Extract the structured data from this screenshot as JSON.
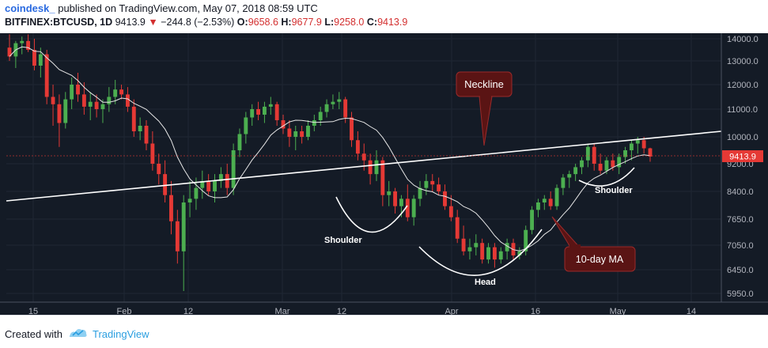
{
  "header": {
    "author": "coindesk_",
    "published_text": "published on TradingView.com, May 07, 2018 08:59 UTC",
    "symbol": "BITFINEX:BTCUSD, 1D",
    "last_price": "9413.9",
    "change_arrow": "▼",
    "change": "−244.8 (−2.53%)",
    "open_label": "O:",
    "open": "9658.6",
    "high_label": "H:",
    "high": "9677.9",
    "low_label": "L:",
    "low": "9258.0",
    "close_label": "C:",
    "close": "9413.9"
  },
  "footer": {
    "created_with": "Created with",
    "brand": "TradingView"
  },
  "colors": {
    "background": "#141b26",
    "up": "#4caf50",
    "down": "#e53935",
    "ma": "#e6e6e6",
    "annotation_bg": "#5a1414",
    "annotation_border": "#9a2a2a",
    "price_tag": "#e53935"
  },
  "chart_data": {
    "type": "candlestick",
    "interval": "1D",
    "symbol": "BITFINEX:BTCUSD",
    "y_ticks": [
      "14000.0",
      "13000.0",
      "12000.0",
      "11000.0",
      "10000.0",
      "9200.0",
      "8400.0",
      "7650.0",
      "7050.0",
      "6450.0",
      "5950.0"
    ],
    "x_ticks": [
      "15",
      "Feb",
      "12",
      "Mar",
      "12",
      "Apr",
      "16",
      "May",
      "14"
    ],
    "current_price": "9413.9",
    "ylim": [
      5700,
      14200
    ],
    "annotations": [
      "Neckline",
      "10-day MA",
      "Shoulder",
      "Head",
      "Shoulder"
    ],
    "candles": [
      [
        13600,
        14200,
        13000,
        13200
      ],
      [
        13200,
        13900,
        12700,
        13800
      ],
      [
        13800,
        14100,
        13300,
        13900
      ],
      [
        13900,
        14200,
        13400,
        13500
      ],
      [
        13500,
        14000,
        12600,
        12800
      ],
      [
        12800,
        13600,
        12300,
        13300
      ],
      [
        13300,
        13500,
        11200,
        11500
      ],
      [
        11500,
        12000,
        10400,
        11200
      ],
      [
        11200,
        11600,
        9700,
        10500
      ],
      [
        10500,
        11700,
        10300,
        11400
      ],
      [
        11400,
        12300,
        11000,
        12000
      ],
      [
        12000,
        12500,
        11300,
        11600
      ],
      [
        11600,
        12100,
        10800,
        11100
      ],
      [
        11100,
        11700,
        10600,
        11300
      ],
      [
        11300,
        11600,
        10700,
        11000
      ],
      [
        11000,
        11400,
        10500,
        11200
      ],
      [
        11200,
        11900,
        10900,
        11500
      ],
      [
        11500,
        12200,
        11200,
        11800
      ],
      [
        11800,
        12000,
        11400,
        11600
      ],
      [
        11600,
        11900,
        10900,
        11100
      ],
      [
        11100,
        11400,
        10000,
        10200
      ],
      [
        10200,
        10700,
        9900,
        10400
      ],
      [
        10400,
        10600,
        9600,
        9800
      ],
      [
        9800,
        10200,
        9000,
        9200
      ],
      [
        9200,
        9500,
        8600,
        8900
      ],
      [
        8900,
        9300,
        8100,
        8300
      ],
      [
        8300,
        8700,
        7300,
        7600
      ],
      [
        7600,
        7900,
        6600,
        6900
      ],
      [
        6900,
        8300,
        6000,
        8100
      ],
      [
        8100,
        8700,
        7700,
        8200
      ],
      [
        8200,
        8800,
        7900,
        8500
      ],
      [
        8500,
        9000,
        8200,
        8700
      ],
      [
        8700,
        8900,
        8300,
        8400
      ],
      [
        8400,
        8900,
        8100,
        8700
      ],
      [
        8700,
        9100,
        8500,
        8900
      ],
      [
        8900,
        9200,
        8300,
        8500
      ],
      [
        8500,
        9800,
        8300,
        9600
      ],
      [
        9600,
        10300,
        9400,
        10100
      ],
      [
        10100,
        10900,
        9800,
        10700
      ],
      [
        10700,
        11200,
        10400,
        11000
      ],
      [
        11000,
        11300,
        10600,
        10800
      ],
      [
        10800,
        11300,
        10500,
        11100
      ],
      [
        11100,
        11500,
        10800,
        11200
      ],
      [
        11200,
        11300,
        10400,
        10600
      ],
      [
        10600,
        10800,
        10100,
        10300
      ],
      [
        10300,
        10600,
        9700,
        10000
      ],
      [
        10000,
        10400,
        9600,
        10200
      ],
      [
        10200,
        10400,
        9800,
        10000
      ],
      [
        10000,
        10600,
        9900,
        10400
      ],
      [
        10400,
        10800,
        10200,
        10600
      ],
      [
        10600,
        11100,
        10400,
        10900
      ],
      [
        10900,
        11400,
        10700,
        11200
      ],
      [
        11200,
        11600,
        11000,
        11300
      ],
      [
        11300,
        11700,
        11000,
        11400
      ],
      [
        11400,
        11500,
        10500,
        10700
      ],
      [
        10700,
        10900,
        9700,
        9900
      ],
      [
        9900,
        10200,
        9300,
        9500
      ],
      [
        9500,
        9800,
        9000,
        9300
      ],
      [
        9300,
        9500,
        8600,
        8900
      ],
      [
        8900,
        9600,
        8700,
        9300
      ],
      [
        9300,
        9400,
        8000,
        8300
      ],
      [
        8300,
        8700,
        8000,
        8400
      ],
      [
        8400,
        8500,
        7800,
        8000
      ],
      [
        8000,
        8300,
        7700,
        8200
      ],
      [
        8200,
        8600,
        7600,
        7700
      ],
      [
        7700,
        8300,
        7500,
        8200
      ],
      [
        8200,
        8700,
        8000,
        8500
      ],
      [
        8500,
        8900,
        8300,
        8700
      ],
      [
        8700,
        8900,
        8400,
        8600
      ],
      [
        8600,
        8800,
        8300,
        8400
      ],
      [
        8400,
        8600,
        7900,
        8000
      ],
      [
        8000,
        8300,
        7600,
        7700
      ],
      [
        7700,
        7900,
        7100,
        7200
      ],
      [
        7200,
        7500,
        6800,
        6900
      ],
      [
        6900,
        7200,
        6700,
        7000
      ],
      [
        7000,
        7300,
        6800,
        7100
      ],
      [
        7100,
        7200,
        6600,
        6700
      ],
      [
        6700,
        7100,
        6600,
        7000
      ],
      [
        7000,
        7100,
        6500,
        6700
      ],
      [
        6700,
        7000,
        6600,
        6900
      ],
      [
        6900,
        7200,
        6700,
        7100
      ],
      [
        7100,
        7200,
        6700,
        6800
      ],
      [
        6800,
        7000,
        6700,
        6900
      ],
      [
        6900,
        7500,
        6800,
        7400
      ],
      [
        7400,
        8000,
        7300,
        7900
      ],
      [
        7900,
        8200,
        7700,
        8100
      ],
      [
        8100,
        8300,
        7900,
        8200
      ],
      [
        8200,
        8400,
        7900,
        8000
      ],
      [
        8000,
        8600,
        7900,
        8500
      ],
      [
        8500,
        8900,
        8300,
        8800
      ],
      [
        8800,
        9000,
        8500,
        8900
      ],
      [
        8900,
        9200,
        8700,
        9100
      ],
      [
        9100,
        9400,
        8900,
        9300
      ],
      [
        9300,
        9800,
        9100,
        9700
      ],
      [
        9700,
        9800,
        9000,
        9200
      ],
      [
        9200,
        9500,
        8900,
        9000
      ],
      [
        9000,
        9400,
        8900,
        9300
      ],
      [
        9300,
        9500,
        9000,
        9100
      ],
      [
        9100,
        9500,
        8900,
        9400
      ],
      [
        9400,
        9700,
        9200,
        9600
      ],
      [
        9600,
        9900,
        9300,
        9800
      ],
      [
        9800,
        10000,
        9500,
        9900
      ],
      [
        9900,
        10000,
        9500,
        9658.6
      ],
      [
        9658.6,
        9677.9,
        9258,
        9413.9
      ]
    ]
  }
}
